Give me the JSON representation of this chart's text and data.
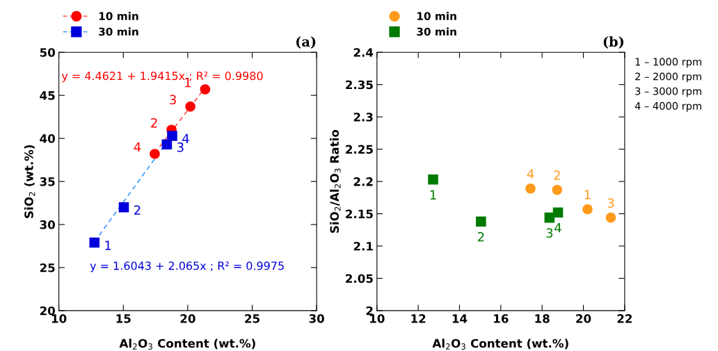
{
  "chart_data": [
    {
      "type": "scatter",
      "title": "(a)",
      "xlabel": "Al$_{2}$O$_{3}$ Content (wt.%)",
      "ylabel": "SiO$_{2}$ (wt.%)",
      "xlim": [
        10,
        30
      ],
      "xticks": [
        10,
        15,
        20,
        25,
        30
      ],
      "ylim": [
        20,
        50
      ],
      "yticks": [
        20,
        25,
        30,
        35,
        40,
        45,
        50
      ],
      "grid": false,
      "legend": "top left",
      "annotations": [
        "y = 4.4621 + 1.9415x ; R² = 0.9980",
        "y = 1.6043 + 2.065x ; R² = 0.9975",
        {
          "text": "1",
          "x": 21.35,
          "y": 45.7
        },
        {
          "text": "2",
          "x": 18.74,
          "y": 41.0
        },
        {
          "text": "3",
          "x": 20.2,
          "y": 43.7
        },
        {
          "text": "4",
          "x": 17.44,
          "y": 38.2
        },
        {
          "text": "1",
          "x": 12.76,
          "y": 27.9
        },
        {
          "text": "2",
          "x": 15.04,
          "y": 32.0
        },
        {
          "text": "3",
          "x": 18.38,
          "y": 39.3
        },
        {
          "text": "4",
          "x": 18.79,
          "y": 40.3
        }
      ],
      "series": [
        {
          "name": "10 min",
          "color": "#ff0000",
          "marker": "circle",
          "x": [
            21.35,
            18.74,
            20.2,
            17.44
          ],
          "values": [
            45.7,
            41.0,
            43.7,
            38.2
          ]
        },
        {
          "name": "30 min",
          "color": "#0000dd",
          "marker": "square",
          "x": [
            12.76,
            15.04,
            18.38,
            18.79
          ],
          "values": [
            27.9,
            32.0,
            39.3,
            40.3
          ]
        },
        {
          "type": "line",
          "color": "#ff4d4d",
          "line_style": "dashed",
          "x": [
            17.44,
            21.35
          ],
          "values": [
            38.3,
            45.9
          ]
        },
        {
          "type": "line",
          "color": "#3399ff",
          "line_style": "dashed",
          "x": [
            12.76,
            18.79
          ],
          "values": [
            28.0,
            40.4
          ]
        }
      ]
    },
    {
      "type": "scatter",
      "title": "(b)",
      "xlabel": "Al$_{2}$O$_{3}$ Content (wt.%)",
      "ylabel": "SiO$_{2}$/Al$_{2}$O$_{3}$ Ratio",
      "xlim": [
        10,
        22
      ],
      "xticks": [
        10,
        12,
        14,
        16,
        18,
        20,
        22
      ],
      "ylim": [
        2,
        2.4
      ],
      "yticks": [
        2,
        2.05,
        2.1,
        2.15,
        2.2,
        2.25,
        2.3,
        2.35,
        2.4
      ],
      "grid": false,
      "legend": "top left",
      "annotations": [
        "1 – 1000 rpm",
        "2 – 2000 rpm",
        "3 – 3000 rpm",
        "4 – 4000 rpm",
        {
          "text": "1",
          "x": 20.2,
          "y": 2.157
        },
        {
          "text": "2",
          "x": 18.73,
          "y": 2.187
        },
        {
          "text": "3",
          "x": 21.33,
          "y": 2.144
        },
        {
          "text": "4",
          "x": 17.44,
          "y": 2.189
        },
        {
          "text": "1",
          "x": 12.72,
          "y": 2.203
        },
        {
          "text": "2",
          "x": 15.04,
          "y": 2.138
        },
        {
          "text": "3",
          "x": 18.36,
          "y": 2.144
        },
        {
          "text": "4",
          "x": 18.77,
          "y": 2.152
        }
      ],
      "series": [
        {
          "name": "10 min",
          "color": "#ff9a1a",
          "marker": "circle",
          "x": [
            20.2,
            18.73,
            21.33,
            17.44
          ],
          "values": [
            2.157,
            2.187,
            2.144,
            2.189
          ]
        },
        {
          "name": "30 min",
          "color": "#007a00",
          "marker": "square",
          "x": [
            12.72,
            15.04,
            18.36,
            18.77
          ],
          "values": [
            2.203,
            2.138,
            2.144,
            2.152
          ]
        }
      ]
    }
  ]
}
